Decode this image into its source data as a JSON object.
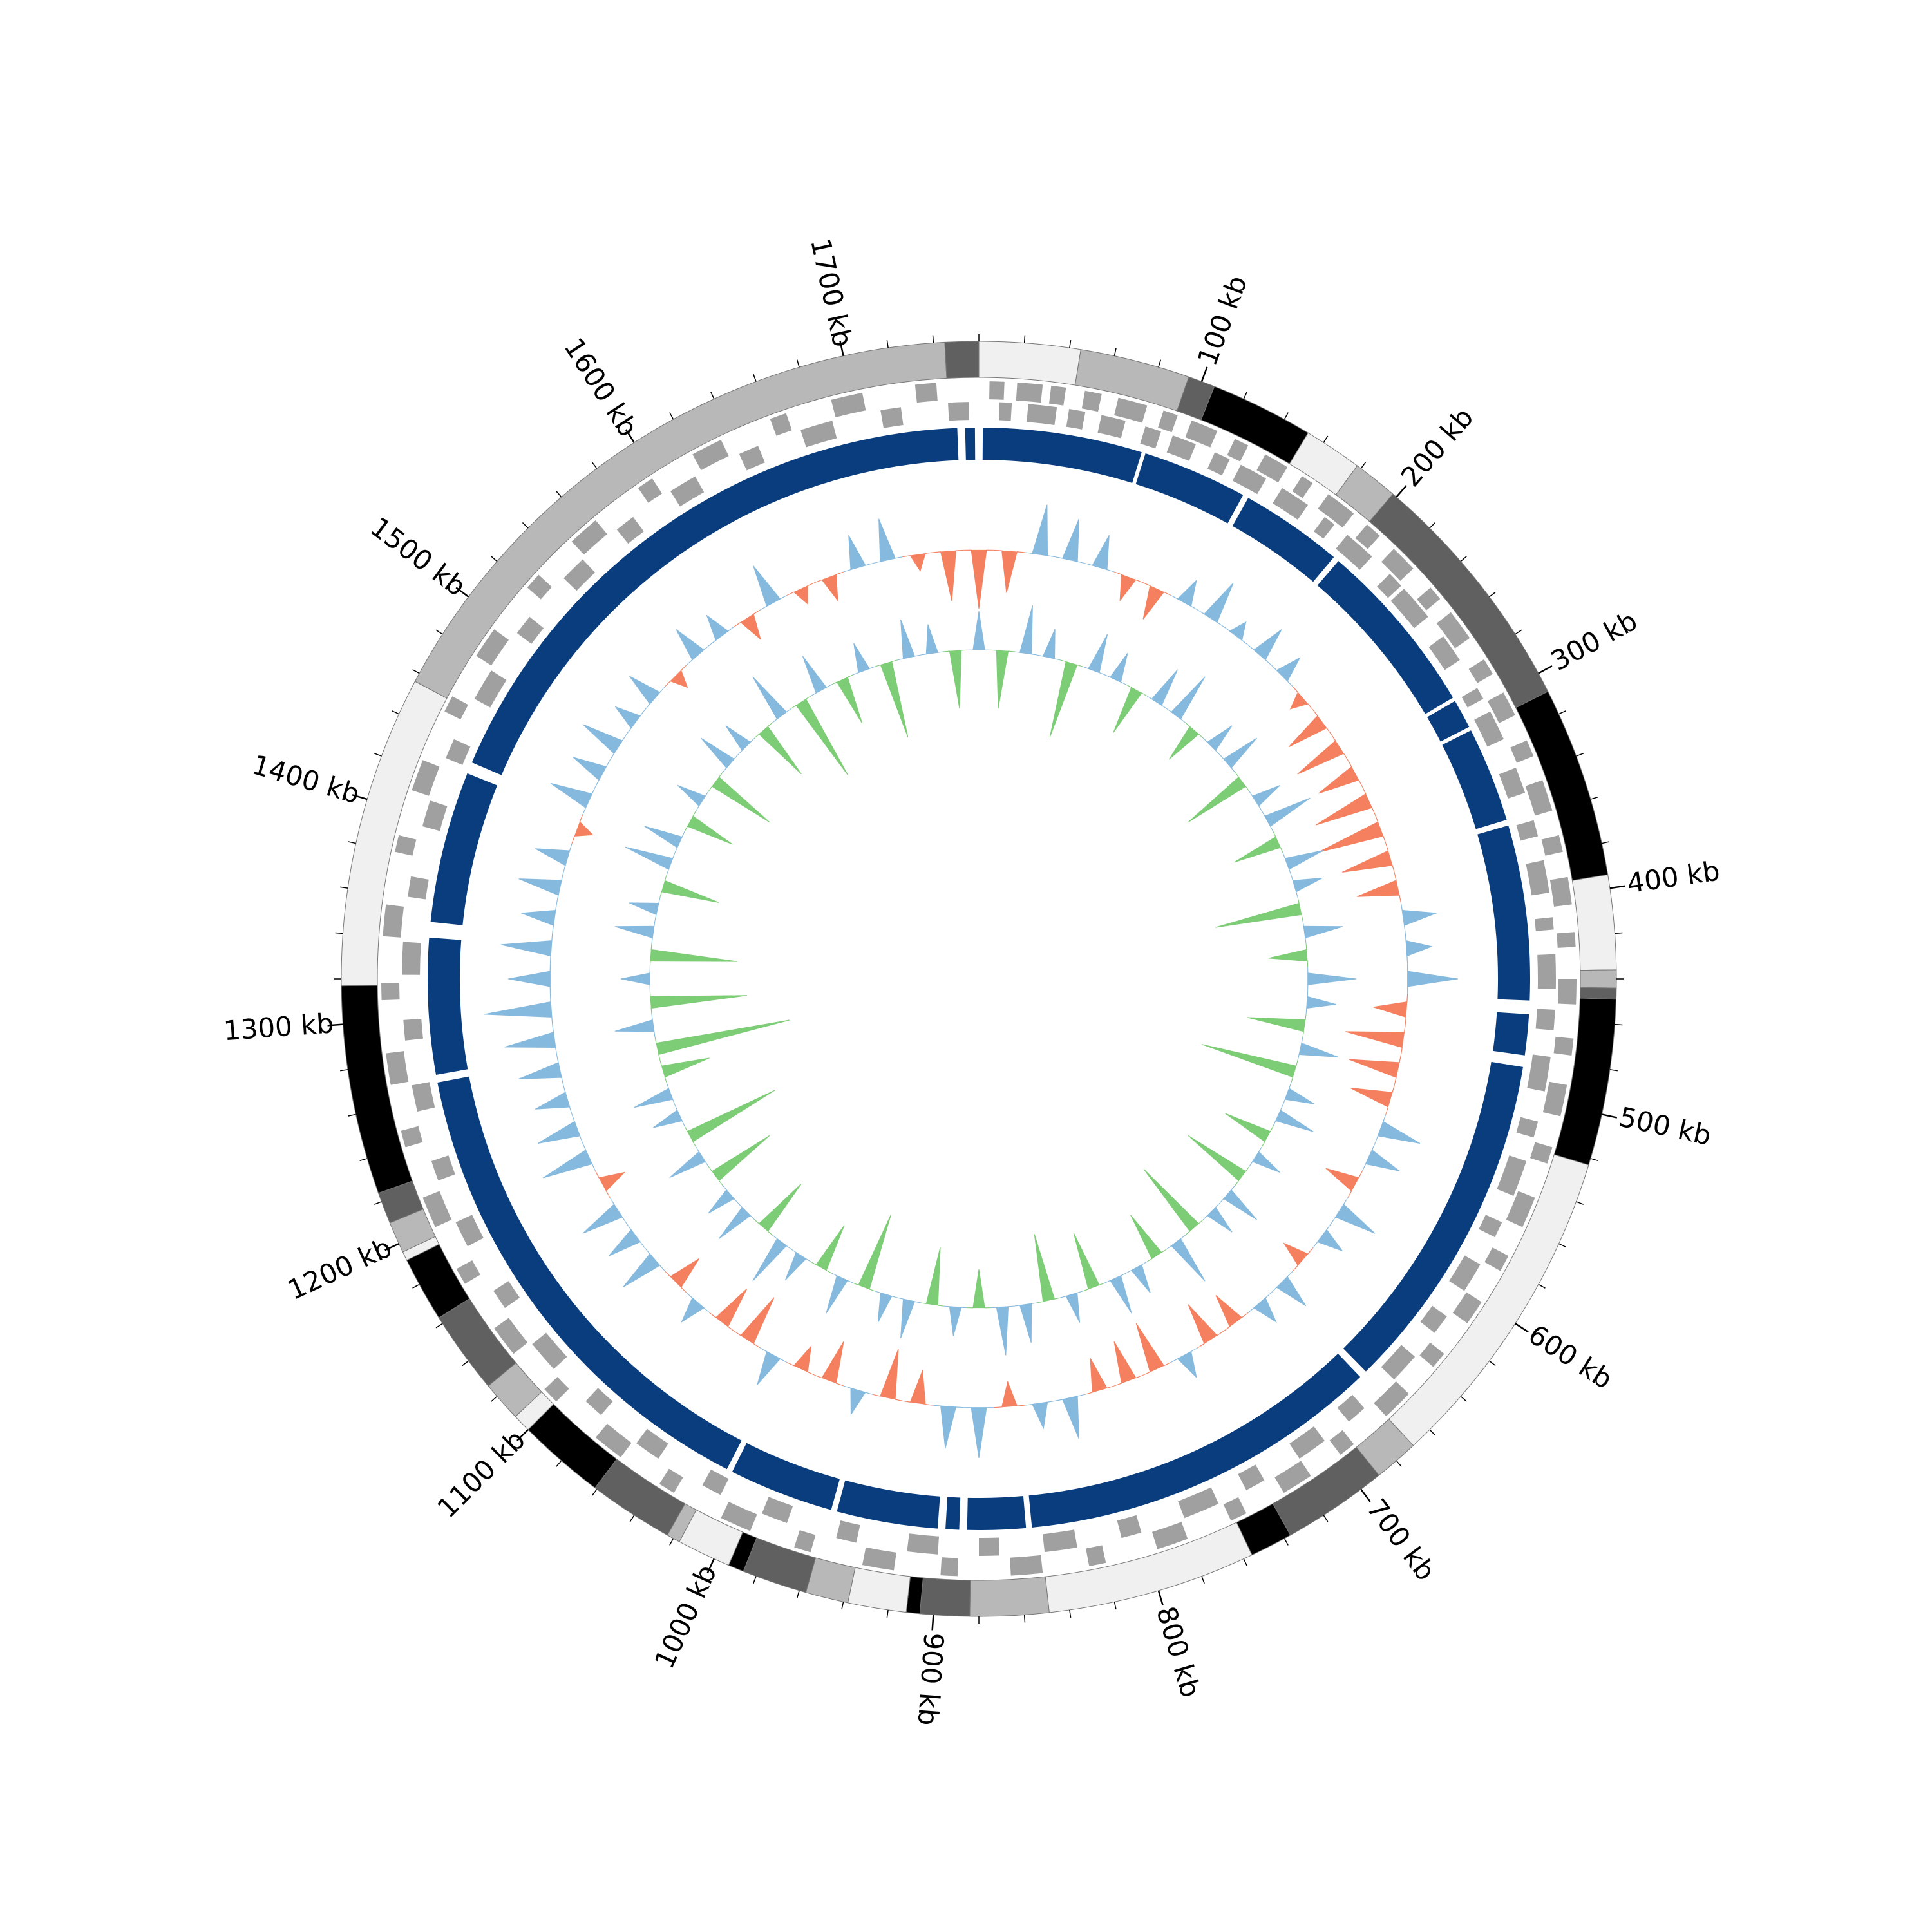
{
  "chart_data": {
    "type": "circular",
    "xlim": [
      0,
      1760
    ],
    "xticks": [
      {
        "value": 100,
        "label": "100 kb"
      },
      {
        "value": 200,
        "label": "200 kb"
      },
      {
        "value": 300,
        "label": "300 kb"
      },
      {
        "value": 400,
        "label": "400 kb"
      },
      {
        "value": 500,
        "label": "500 kb"
      },
      {
        "value": 600,
        "label": "600 kb"
      },
      {
        "value": 700,
        "label": "700 kb"
      },
      {
        "value": 800,
        "label": "800 kb"
      },
      {
        "value": 900,
        "label": "900 kb"
      },
      {
        "value": 1000,
        "label": "1000 kb"
      },
      {
        "value": 1100,
        "label": "1100 kb"
      },
      {
        "value": 1200,
        "label": "1200 kb"
      },
      {
        "value": 1300,
        "label": "1300 kb"
      },
      {
        "value": 1400,
        "label": "1400 kb"
      },
      {
        "value": 1500,
        "label": "1500 kb"
      },
      {
        "value": 1600,
        "label": "1600 kb"
      },
      {
        "value": 1700,
        "label": "1700 kb"
      }
    ],
    "minor_tick_step": 20,
    "band_colors": [
      "#f0f0f0",
      "#b8b8b8",
      "#606060",
      "#000000"
    ],
    "bands": [
      [
        0,
        45,
        0
      ],
      [
        45,
        94,
        1
      ],
      [
        94,
        106,
        2
      ],
      [
        106,
        152,
        3
      ],
      [
        152,
        178,
        0
      ],
      [
        178,
        198,
        1
      ],
      [
        198,
        309,
        2
      ],
      [
        309,
        394,
        3
      ],
      [
        394,
        436,
        0
      ],
      [
        436,
        444,
        1
      ],
      [
        444,
        449,
        2
      ],
      [
        449,
        523,
        3
      ],
      [
        523,
        670,
        0
      ],
      [
        670,
        690,
        1
      ],
      [
        690,
        737,
        2
      ],
      [
        737,
        756,
        3
      ],
      [
        756,
        849,
        0
      ],
      [
        849,
        884,
        1
      ],
      [
        884,
        906,
        2
      ],
      [
        906,
        912,
        3
      ],
      [
        912,
        938,
        0
      ],
      [
        938,
        957,
        1
      ],
      [
        957,
        986,
        2
      ],
      [
        986,
        993,
        3
      ],
      [
        993,
        1017,
        0
      ],
      [
        1017,
        1023,
        1
      ],
      [
        1023,
        1061,
        2
      ],
      [
        1061,
        1100,
        3
      ],
      [
        1100,
        1108,
        0
      ],
      [
        1108,
        1126,
        1
      ],
      [
        1126,
        1163,
        2
      ],
      [
        1163,
        1192,
        3
      ],
      [
        1192,
        1196,
        0
      ],
      [
        1196,
        1210,
        1
      ],
      [
        1210,
        1224,
        2
      ],
      [
        1224,
        1317,
        3
      ],
      [
        1317,
        1456,
        0
      ],
      [
        1456,
        1745,
        1
      ],
      [
        1745,
        1760,
        2
      ]
    ],
    "genes": {
      "color": "#a0a0a0",
      "forward": [
        [
          5,
          12
        ],
        [
          18,
          30
        ],
        [
          34,
          41
        ],
        [
          50,
          58
        ],
        [
          66,
          80
        ],
        [
          88,
          95
        ],
        [
          102,
          115
        ],
        [
          124,
          131
        ],
        [
          140,
          152
        ],
        [
          160,
          166
        ],
        [
          175,
          190
        ],
        [
          198,
          206
        ],
        [
          215,
          228
        ],
        [
          240,
          247
        ],
        [
          255,
          270
        ],
        [
          282,
          290
        ],
        [
          300,
          312
        ],
        [
          325,
          333
        ],
        [
          345,
          360
        ],
        [
          372,
          380
        ],
        [
          392,
          405
        ],
        [
          418,
          425
        ],
        [
          440,
          452
        ],
        [
          468,
          476
        ],
        [
          490,
          505
        ],
        [
          520,
          528
        ],
        [
          545,
          560
        ],
        [
          575,
          583
        ],
        [
          600,
          612
        ],
        [
          630,
          638
        ],
        [
          655,
          670
        ],
        [
          690,
          698
        ],
        [
          715,
          730
        ],
        [
          750,
          758
        ],
        [
          780,
          795
        ],
        [
          820,
          828
        ],
        [
          850,
          865
        ],
        [
          890,
          898
        ],
        [
          920,
          935
        ],
        [
          960,
          968
        ],
        [
          990,
          1005
        ],
        [
          1030,
          1038
        ],
        [
          1060,
          1075
        ],
        [
          1100,
          1108
        ],
        [
          1130,
          1145
        ],
        [
          1170,
          1178
        ],
        [
          1200,
          1215
        ],
        [
          1240,
          1248
        ],
        [
          1270,
          1285
        ],
        [
          1310,
          1318
        ],
        [
          1340,
          1355
        ],
        [
          1380,
          1388
        ],
        [
          1410,
          1425
        ],
        [
          1450,
          1458
        ],
        [
          1480,
          1495
        ],
        [
          1520,
          1528
        ],
        [
          1550,
          1565
        ],
        [
          1590,
          1598
        ],
        [
          1620,
          1635
        ],
        [
          1660,
          1668
        ],
        [
          1690,
          1705
        ],
        [
          1730,
          1740
        ]
      ],
      "reverse": [
        [
          10,
          16
        ],
        [
          24,
          38
        ],
        [
          44,
          52
        ],
        [
          60,
          72
        ],
        [
          82,
          90
        ],
        [
          96,
          108
        ],
        [
          118,
          126
        ],
        [
          132,
          146
        ],
        [
          155,
          170
        ],
        [
          180,
          186
        ],
        [
          194,
          210
        ],
        [
          222,
          230
        ],
        [
          232,
          250
        ],
        [
          262,
          276
        ],
        [
          292,
          298
        ],
        [
          305,
          320
        ],
        [
          335,
          348
        ],
        [
          362,
          370
        ],
        [
          382,
          398
        ],
        [
          410,
          416
        ],
        [
          428,
          445
        ],
        [
          455,
          465
        ],
        [
          478,
          495
        ],
        [
          510,
          518
        ],
        [
          530,
          548
        ],
        [
          562,
          570
        ],
        [
          585,
          600
        ],
        [
          615,
          625
        ],
        [
          640,
          655
        ],
        [
          675,
          685
        ],
        [
          700,
          715
        ],
        [
          735,
          745
        ],
        [
          760,
          778
        ],
        [
          800,
          810
        ],
        [
          832,
          848
        ],
        [
          870,
          880
        ],
        [
          900,
          915
        ],
        [
          940,
          950
        ],
        [
          975,
          988
        ],
        [
          1010,
          1020
        ],
        [
          1045,
          1058
        ],
        [
          1080,
          1090
        ],
        [
          1112,
          1128
        ],
        [
          1150,
          1160
        ],
        [
          1185,
          1198
        ],
        [
          1220,
          1230
        ],
        [
          1255,
          1268
        ],
        [
          1290,
          1300
        ],
        [
          1322,
          1338
        ],
        [
          1360,
          1370
        ],
        [
          1395,
          1408
        ],
        [
          1430,
          1440
        ],
        [
          1462,
          1478
        ],
        [
          1500,
          1510
        ],
        [
          1535,
          1548
        ],
        [
          1570,
          1580
        ],
        [
          1602,
          1616
        ],
        [
          1640,
          1650
        ],
        [
          1672,
          1688
        ],
        [
          1712,
          1722
        ],
        [
          1745,
          1755
        ]
      ]
    },
    "blocks": {
      "color": "#0a3d7e",
      "spans": [
        [
          2,
          84
        ],
        [
          86,
          140
        ],
        [
          143,
          196
        ],
        [
          199,
          290
        ],
        [
          292,
          307
        ],
        [
          309,
          358
        ],
        [
          361,
          451
        ],
        [
          458,
          479
        ],
        [
          485,
          662
        ],
        [
          666,
          853
        ],
        [
          856,
          886
        ],
        [
          890,
          897
        ],
        [
          901,
          953
        ],
        [
          956,
          1010
        ],
        [
          1013,
          1267
        ],
        [
          1271,
          1341
        ],
        [
          1349,
          1427
        ],
        [
          1433,
          1749
        ],
        [
          1753,
          1758
        ]
      ]
    },
    "x": [
      0,
      20,
      40,
      60,
      80,
      100,
      120,
      140,
      160,
      180,
      200,
      220,
      240,
      260,
      280,
      300,
      320,
      340,
      360,
      380,
      400,
      420,
      440,
      460,
      480,
      500,
      520,
      540,
      560,
      580,
      600,
      620,
      640,
      660,
      680,
      700,
      720,
      740,
      760,
      780,
      800,
      820,
      840,
      860,
      880,
      900,
      920,
      940,
      960,
      980,
      1000,
      1020,
      1040,
      1060,
      1080,
      1100,
      1120,
      1140,
      1160,
      1180,
      1200,
      1220,
      1240,
      1260,
      1280,
      1300,
      1320,
      1340,
      1360,
      1380,
      1400,
      1420,
      1440,
      1460,
      1480,
      1500,
      1520,
      1540,
      1560,
      1580,
      1600,
      1620,
      1640,
      1660,
      1680,
      1700,
      1720,
      1740
    ],
    "gc_skew": {
      "positive_color": "#86b9de",
      "negative_color": "#f4805f",
      "values": [
        -0.7,
        -0.5,
        0.6,
        0.5,
        0.4,
        -0.3,
        -0.4,
        0.3,
        0.5,
        0.2,
        0.4,
        0.3,
        -0.2,
        -0.5,
        -0.6,
        -0.5,
        -0.7,
        -0.8,
        -0.6,
        -0.5,
        0.4,
        0.3,
        0.6,
        -0.4,
        -0.7,
        -0.6,
        -0.5,
        0.5,
        0.4,
        -0.4,
        0.5,
        0.3,
        -0.3,
        0.4,
        0.3,
        -0.4,
        -0.5,
        0.3,
        -0.6,
        -0.5,
        -0.4,
        0.5,
        0.3,
        -0.3,
        0.6,
        0.5,
        -0.4,
        -0.6,
        0.3,
        -0.5,
        -0.3,
        0.4,
        -0.6,
        -0.5,
        0.3,
        -0.4,
        0.5,
        0.4,
        0.5,
        -0.3,
        0.6,
        0.5,
        0.4,
        0.5,
        0.6,
        0.8,
        0.5,
        0.6,
        0.4,
        0.5,
        0.4,
        -0.2,
        0.5,
        0.4,
        0.5,
        0.3,
        0.4,
        -0.2,
        0.4,
        0.3,
        -0.3,
        0.5,
        -0.2,
        -0.3,
        0.4,
        0.5,
        -0.2,
        -0.6
      ]
    },
    "gc_content": {
      "positive_color": "#86b9de",
      "negative_color": "#7dcc76",
      "values": [
        0.4,
        -0.6,
        0.5,
        0.3,
        -0.8,
        0.4,
        0.3,
        -0.5,
        0.4,
        0.5,
        -0.4,
        0.3,
        0.4,
        -0.7,
        0.3,
        0.5,
        -0.5,
        0.4,
        0.3,
        -0.9,
        0.4,
        -0.4,
        0.5,
        0.3,
        -0.6,
        0.4,
        -1.0,
        0.3,
        0.4,
        -0.5,
        0.3,
        -0.7,
        0.4,
        0.3,
        -0.8,
        0.5,
        -0.5,
        0.3,
        0.4,
        -0.6,
        0.3,
        -0.7,
        0.4,
        0.5,
        -0.4,
        0.3,
        -0.6,
        0.4,
        0.3,
        -0.8,
        0.4,
        -0.5,
        0.3,
        0.5,
        -0.6,
        0.4,
        0.3,
        -0.7,
        0.4,
        -1.0,
        0.3,
        0.4,
        -0.5,
        -1.4,
        0.4,
        -1.0,
        0.3,
        -0.9,
        0.4,
        0.3,
        -0.6,
        0.5,
        0.4,
        -0.5,
        0.3,
        -0.7,
        0.4,
        0.3,
        -0.6,
        0.5,
        -0.9,
        0.4,
        -0.5,
        0.3,
        -0.8,
        0.4,
        0.3,
        -0.6
      ]
    }
  }
}
